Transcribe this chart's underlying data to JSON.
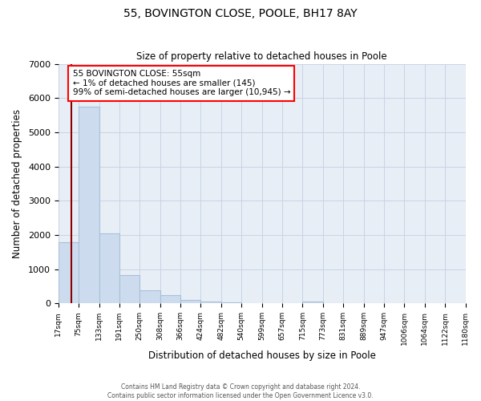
{
  "title": "55, BOVINGTON CLOSE, POOLE, BH17 8AY",
  "subtitle": "Size of property relative to detached houses in Poole",
  "xlabel": "Distribution of detached houses by size in Poole",
  "ylabel": "Number of detached properties",
  "bar_color": "#ccdcee",
  "bar_edge_color": "#a8c0d8",
  "plot_bg_color": "#e8eef6",
  "background_color": "#ffffff",
  "grid_color": "#c8d4e4",
  "bin_labels": [
    "17sqm",
    "75sqm",
    "133sqm",
    "191sqm",
    "250sqm",
    "308sqm",
    "366sqm",
    "424sqm",
    "482sqm",
    "540sqm",
    "599sqm",
    "657sqm",
    "715sqm",
    "773sqm",
    "831sqm",
    "889sqm",
    "947sqm",
    "1006sqm",
    "1064sqm",
    "1122sqm",
    "1180sqm"
  ],
  "bar_values": [
    1780,
    5750,
    2050,
    830,
    370,
    230,
    105,
    60,
    40,
    0,
    0,
    0,
    50,
    0,
    0,
    0,
    0,
    0,
    0,
    0
  ],
  "ylim": [
    0,
    7000
  ],
  "yticks": [
    0,
    1000,
    2000,
    3000,
    4000,
    5000,
    6000,
    7000
  ],
  "annotation_title": "55 BOVINGTON CLOSE: 55sqm",
  "annotation_line1": "← 1% of detached houses are smaller (145)",
  "annotation_line2": "99% of semi-detached houses are larger (10,945) →",
  "footnote1": "Contains HM Land Registry data © Crown copyright and database right 2024.",
  "footnote2": "Contains public sector information licensed under the Open Government Licence v3.0."
}
